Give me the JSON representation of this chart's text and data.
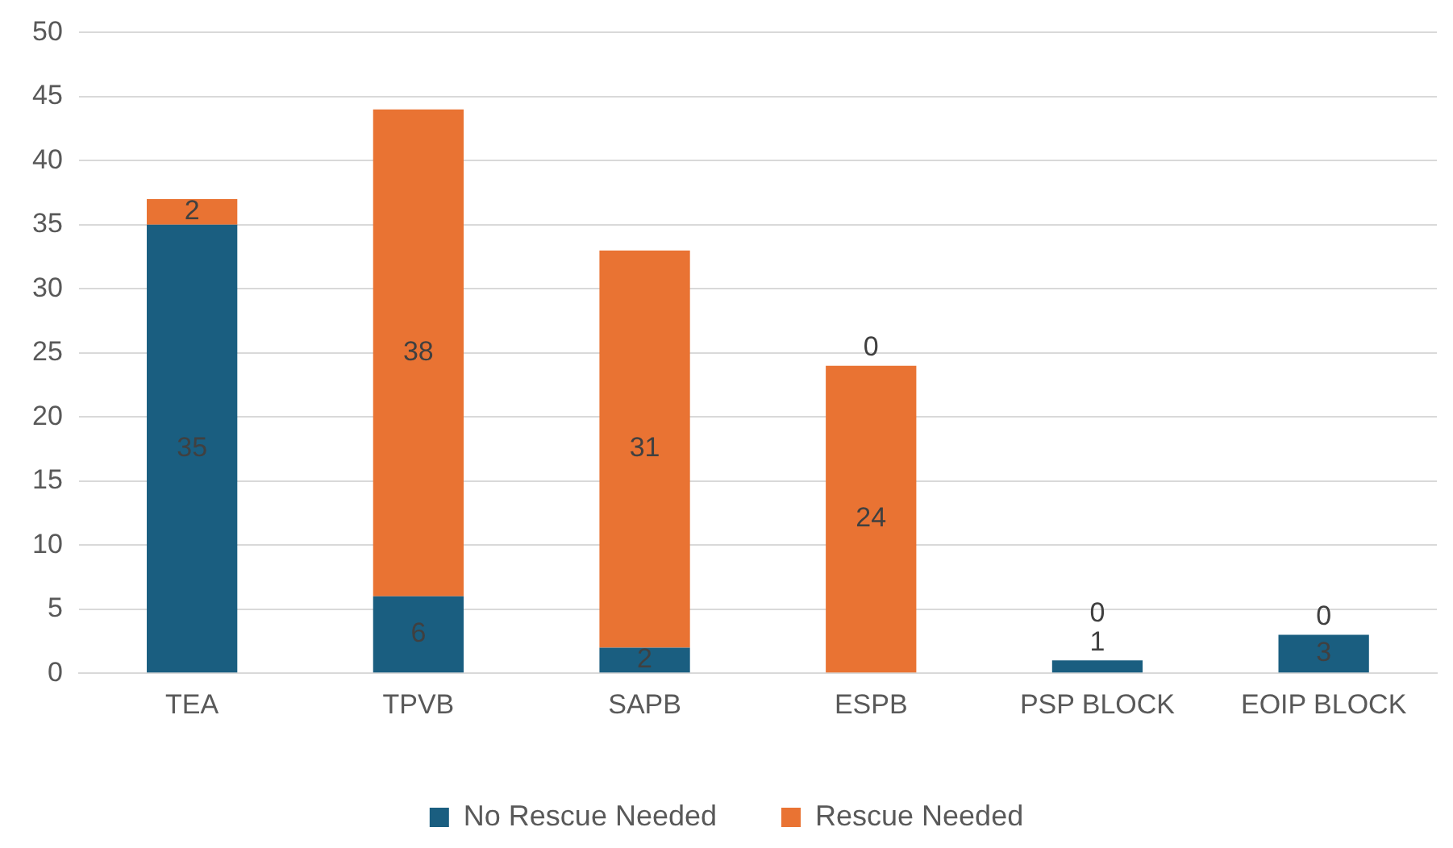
{
  "chart_data": {
    "type": "bar",
    "stacked": true,
    "categories": [
      "TEA",
      "TPVB",
      "SAPB",
      "ESPB",
      "PSP BLOCK",
      "EOIP BLOCK"
    ],
    "series": [
      {
        "name": "No Rescue Needed",
        "color": "#1a5e80",
        "values": [
          35,
          6,
          2,
          0,
          1,
          3
        ]
      },
      {
        "name": "Rescue Needed",
        "color": "#e97333",
        "values": [
          2,
          38,
          31,
          24,
          0,
          0
        ]
      }
    ],
    "ylim": [
      0,
      50
    ],
    "yticks": [
      0,
      5,
      10,
      15,
      20,
      25,
      30,
      35,
      40,
      45,
      50
    ],
    "grid": "y",
    "legend": "bottom",
    "data_labels": true
  }
}
